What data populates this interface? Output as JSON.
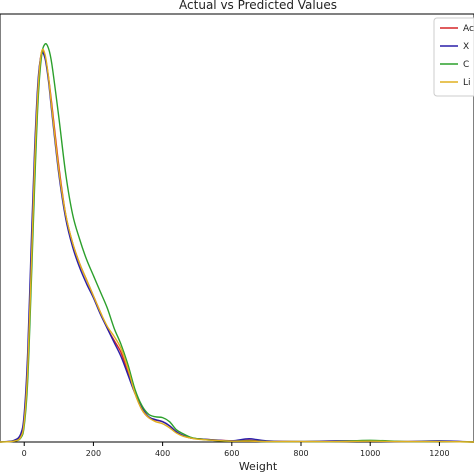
{
  "chart_data": {
    "type": "line",
    "title": "Actual vs Predicted Values",
    "xlabel": "Weight",
    "ylabel": "",
    "xlim": [
      -70,
      1300
    ],
    "ylim": [
      0,
      1.0
    ],
    "x_ticks": [
      0,
      200,
      400,
      600,
      800,
      1000,
      1200
    ],
    "x_tick_labels": [
      "0",
      "200",
      "400",
      "600",
      "800",
      "1000",
      "1200"
    ],
    "legend_placement": "top-right",
    "grid": false,
    "series": [
      {
        "name": "Ac",
        "color": "#d62728",
        "x": [
          -70,
          -30,
          -10,
          0,
          10,
          20,
          30,
          40,
          50,
          60,
          70,
          80,
          100,
          120,
          140,
          160,
          180,
          200,
          220,
          240,
          260,
          280,
          300,
          320,
          340,
          360,
          380,
          400,
          420,
          440,
          460,
          480,
          500,
          550,
          600,
          650,
          700,
          800,
          900,
          1000,
          1100,
          1200,
          1300
        ],
        "y": [
          0,
          0.003,
          0.015,
          0.06,
          0.2,
          0.45,
          0.7,
          0.88,
          0.96,
          0.95,
          0.9,
          0.83,
          0.68,
          0.56,
          0.49,
          0.44,
          0.4,
          0.36,
          0.32,
          0.28,
          0.25,
          0.22,
          0.17,
          0.12,
          0.08,
          0.06,
          0.054,
          0.05,
          0.04,
          0.025,
          0.015,
          0.01,
          0.008,
          0.005,
          0.003,
          0.004,
          0.002,
          0.001,
          0.002,
          0.003,
          0.001,
          0.002,
          0
        ]
      },
      {
        "name": "X",
        "color": "#2a1fa8",
        "x": [
          -70,
          -30,
          -10,
          0,
          10,
          20,
          30,
          40,
          50,
          60,
          70,
          80,
          100,
          120,
          140,
          160,
          180,
          200,
          220,
          240,
          260,
          280,
          300,
          320,
          340,
          360,
          380,
          400,
          420,
          440,
          460,
          480,
          500,
          550,
          600,
          650,
          700,
          800,
          900,
          1000,
          1100,
          1200,
          1300
        ],
        "y": [
          0,
          0.004,
          0.02,
          0.07,
          0.22,
          0.48,
          0.72,
          0.89,
          0.955,
          0.945,
          0.89,
          0.81,
          0.66,
          0.55,
          0.48,
          0.43,
          0.39,
          0.355,
          0.315,
          0.28,
          0.245,
          0.21,
          0.165,
          0.12,
          0.085,
          0.062,
          0.055,
          0.05,
          0.04,
          0.025,
          0.016,
          0.01,
          0.008,
          0.005,
          0.003,
          0.008,
          0.003,
          0.001,
          0.003,
          0.002,
          0.001,
          0.003,
          0
        ]
      },
      {
        "name": "C",
        "color": "#2ca02c",
        "x": [
          -70,
          -30,
          -10,
          0,
          10,
          20,
          30,
          40,
          50,
          60,
          70,
          80,
          100,
          120,
          140,
          160,
          180,
          200,
          220,
          240,
          260,
          280,
          300,
          320,
          340,
          360,
          380,
          400,
          420,
          440,
          460,
          480,
          500,
          550,
          600,
          650,
          700,
          800,
          900,
          1000,
          1100,
          1200,
          1300
        ],
        "y": [
          0,
          0.002,
          0.01,
          0.04,
          0.15,
          0.38,
          0.63,
          0.84,
          0.95,
          0.98,
          0.97,
          0.93,
          0.8,
          0.66,
          0.56,
          0.5,
          0.45,
          0.41,
          0.37,
          0.33,
          0.28,
          0.24,
          0.19,
          0.13,
          0.09,
          0.068,
          0.062,
          0.06,
          0.05,
          0.03,
          0.02,
          0.012,
          0.008,
          0.004,
          0.002,
          0.003,
          0.001,
          0.001,
          0.001,
          0.004,
          0.001,
          0.001,
          0
        ]
      },
      {
        "name": "Li",
        "color": "#e0b020",
        "x": [
          -70,
          -30,
          -10,
          0,
          10,
          20,
          30,
          40,
          50,
          60,
          70,
          80,
          100,
          120,
          140,
          160,
          180,
          200,
          220,
          240,
          260,
          280,
          300,
          320,
          340,
          360,
          380,
          400,
          420,
          440,
          460,
          480,
          500,
          550,
          600,
          650,
          700,
          800,
          900,
          1000,
          1100,
          1200,
          1300
        ],
        "y": [
          0,
          0.002,
          0.012,
          0.05,
          0.18,
          0.42,
          0.68,
          0.87,
          0.96,
          0.955,
          0.9,
          0.82,
          0.67,
          0.56,
          0.49,
          0.44,
          0.4,
          0.36,
          0.32,
          0.285,
          0.26,
          0.23,
          0.18,
          0.12,
          0.08,
          0.06,
          0.05,
          0.045,
          0.035,
          0.022,
          0.014,
          0.01,
          0.007,
          0.004,
          0.002,
          0.002,
          0.001,
          0.001,
          0.001,
          0.002,
          0.001,
          0.001,
          0
        ]
      }
    ]
  }
}
